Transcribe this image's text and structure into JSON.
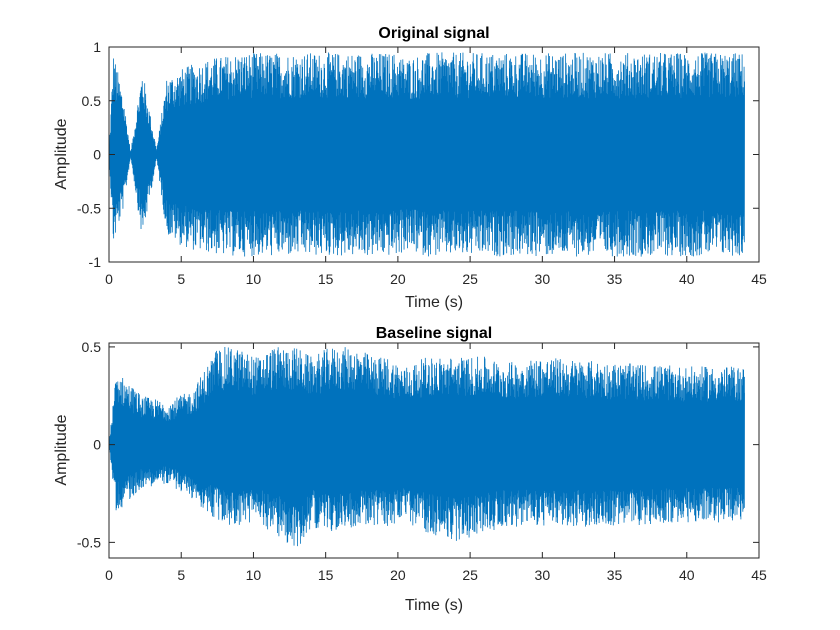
{
  "chart_data": [
    {
      "type": "line",
      "title": "Original signal",
      "xlabel": "Time (s)",
      "ylabel": "Amplitude",
      "xlim": [
        0,
        45
      ],
      "ylim": [
        -1,
        1
      ],
      "xticks": [
        "0",
        "5",
        "10",
        "15",
        "20",
        "25",
        "30",
        "35",
        "40",
        "45"
      ],
      "yticks": [
        "-1",
        "-0.5",
        "0",
        "0.5",
        "1"
      ],
      "grid": false,
      "legend": "none",
      "series": [
        {
          "color": "#0072BD",
          "description_points": {
            "x": [
              0,
              0.3,
              1,
              1.5,
              2.3,
              3.3,
              4,
              5,
              6,
              7,
              8,
              9,
              10,
              11,
              12,
              13,
              14,
              15,
              16,
              17,
              18,
              19,
              20,
              20.5,
              22,
              24,
              26,
              27.5,
              28,
              32,
              36,
              40,
              44
            ],
            "y_max": [
              0,
              0.95,
              0.55,
              0.02,
              0.8,
              0.05,
              0.72,
              0.8,
              0.85,
              0.9,
              0.92,
              0.95,
              0.95,
              0.95,
              0.95,
              0.95,
              0.95,
              0.95,
              0.95,
              0.95,
              0.95,
              0.95,
              0.95,
              0.9,
              0.95,
              0.95,
              0.95,
              0.95,
              0.95,
              0.95,
              0.95,
              0.95,
              0.95
            ],
            "y_min": [
              0,
              -0.85,
              -0.5,
              -0.02,
              -0.8,
              -0.05,
              -0.75,
              -0.85,
              -0.9,
              -0.92,
              -0.95,
              -0.95,
              -0.95,
              -0.95,
              -0.95,
              -0.95,
              -0.95,
              -0.95,
              -0.95,
              -0.95,
              -0.95,
              -0.95,
              -0.95,
              -0.9,
              -0.95,
              -0.95,
              -0.95,
              -0.95,
              -0.95,
              -0.95,
              -0.95,
              -0.95,
              -0.95
            ]
          }
        }
      ]
    },
    {
      "type": "line",
      "title": "Baseline signal",
      "xlabel": "Time (s)",
      "ylabel": "Amplitude",
      "xlim": [
        0,
        45
      ],
      "ylim": [
        -0.58,
        0.52
      ],
      "xticks": [
        "0",
        "5",
        "10",
        "15",
        "20",
        "25",
        "30",
        "35",
        "40",
        "45"
      ],
      "yticks": [
        "-0.5",
        "0",
        "0.5"
      ],
      "grid": false,
      "legend": "none",
      "series": [
        {
          "color": "#0072BD",
          "description_points": {
            "x": [
              0,
              0.5,
              2.3,
              4,
              5.8,
              7.5,
              8.7,
              10.3,
              11.3,
              13,
              14,
              15.3,
              17,
              18.4,
              19.3,
              20.5,
              22,
              24,
              26,
              27.5,
              30,
              35,
              40,
              44
            ],
            "y_max": [
              0,
              0.38,
              0.25,
              0.22,
              0.28,
              0.5,
              0.5,
              0.45,
              0.5,
              0.5,
              0.45,
              0.5,
              0.5,
              0.45,
              0.45,
              0.4,
              0.45,
              0.45,
              0.45,
              0.42,
              0.45,
              0.42,
              0.4,
              0.4
            ],
            "y_min": [
              0,
              -0.35,
              -0.22,
              -0.2,
              -0.28,
              -0.4,
              -0.42,
              -0.4,
              -0.45,
              -0.55,
              -0.42,
              -0.45,
              -0.42,
              -0.42,
              -0.42,
              -0.4,
              -0.45,
              -0.5,
              -0.45,
              -0.42,
              -0.42,
              -0.42,
              -0.4,
              -0.4
            ]
          }
        }
      ]
    }
  ]
}
